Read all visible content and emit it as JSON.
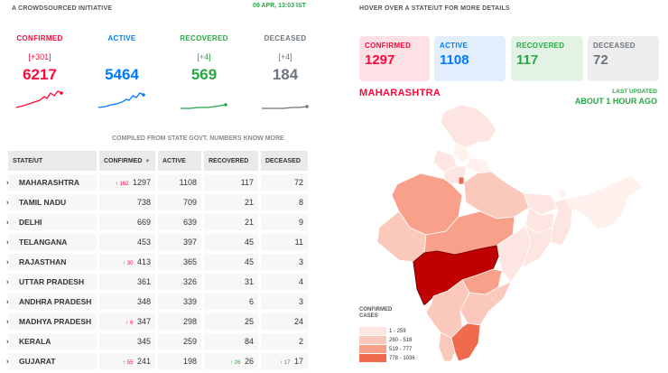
{
  "header": {
    "tagline": "A CROWDSOURCED INITIATIVE",
    "datetime": "09 APR, 13:03 IST",
    "hover_hint": "HOVER OVER A STATE/UT FOR MORE DETAILS"
  },
  "summary": {
    "confirmed": {
      "label": "CONFIRMED",
      "delta": "[+301]",
      "value": "6217",
      "color": "#ff073a"
    },
    "active": {
      "label": "ACTIVE",
      "delta": "",
      "value": "5464",
      "color": "#007bff"
    },
    "recovered": {
      "label": "RECOVERED",
      "delta": "[+4]",
      "value": "569",
      "color": "#28a745"
    },
    "deceased": {
      "label": "DECEASED",
      "delta": "[+4]",
      "value": "184",
      "color": "#6c757d"
    }
  },
  "compiled": {
    "text": "COMPILED FROM STATE GOVT. NUMBERS",
    "link": "KNOW MORE"
  },
  "table": {
    "headers": {
      "state": "STATE/UT",
      "confirmed": "CONFIRMED",
      "active": "ACTIVE",
      "recovered": "RECOVERED",
      "deceased": "DECEASED"
    },
    "rows": [
      {
        "state": "MAHARASHTRA",
        "confirmed_delta": "162",
        "confirmed": "1297",
        "active": "1108",
        "recovered": "117",
        "recovered_delta": "",
        "deceased": "72",
        "deceased_delta": ""
      },
      {
        "state": "TAMIL NADU",
        "confirmed_delta": "",
        "confirmed": "738",
        "active": "709",
        "recovered": "21",
        "recovered_delta": "",
        "deceased": "8",
        "deceased_delta": ""
      },
      {
        "state": "DELHI",
        "confirmed_delta": "",
        "confirmed": "669",
        "active": "639",
        "recovered": "21",
        "recovered_delta": "",
        "deceased": "9",
        "deceased_delta": ""
      },
      {
        "state": "TELANGANA",
        "confirmed_delta": "",
        "confirmed": "453",
        "active": "397",
        "recovered": "45",
        "recovered_delta": "",
        "deceased": "11",
        "deceased_delta": ""
      },
      {
        "state": "RAJASTHAN",
        "confirmed_delta": "30",
        "confirmed": "413",
        "active": "365",
        "recovered": "45",
        "recovered_delta": "",
        "deceased": "3",
        "deceased_delta": ""
      },
      {
        "state": "UTTAR PRADESH",
        "confirmed_delta": "",
        "confirmed": "361",
        "active": "326",
        "recovered": "31",
        "recovered_delta": "",
        "deceased": "4",
        "deceased_delta": ""
      },
      {
        "state": "ANDHRA PRADESH",
        "confirmed_delta": "",
        "confirmed": "348",
        "active": "339",
        "recovered": "6",
        "recovered_delta": "",
        "deceased": "3",
        "deceased_delta": ""
      },
      {
        "state": "MADHYA PRADESH",
        "confirmed_delta": "6",
        "confirmed": "347",
        "active": "298",
        "recovered": "25",
        "recovered_delta": "",
        "deceased": "24",
        "deceased_delta": ""
      },
      {
        "state": "KERALA",
        "confirmed_delta": "",
        "confirmed": "345",
        "active": "259",
        "recovered": "84",
        "recovered_delta": "",
        "deceased": "2",
        "deceased_delta": ""
      },
      {
        "state": "GUJARAT",
        "confirmed_delta": "55",
        "confirmed": "241",
        "active": "198",
        "recovered": "26",
        "recovered_delta": "26",
        "deceased": "17",
        "deceased_delta": "17"
      }
    ]
  },
  "state_panel": {
    "confirmed": {
      "label": "CONFIRMED",
      "value": "1297"
    },
    "active": {
      "label": "ACTIVE",
      "value": "1108"
    },
    "recovered": {
      "label": "RECOVERED",
      "value": "117"
    },
    "deceased": {
      "label": "DECEASED",
      "value": "72"
    },
    "state_name": "MAHARASHTRA",
    "last_updated_label": "LAST UPDATED",
    "last_updated_value": "ABOUT 1 HOUR AGO"
  },
  "legend": {
    "title": "CONFIRMED CASES",
    "ranges": [
      {
        "label": "1 - 259",
        "color": "#fde6e2"
      },
      {
        "label": "260 - 518",
        "color": "#fbc8bc"
      },
      {
        "label": "519 - 777",
        "color": "#f8a08a"
      },
      {
        "label": "778 - 1036",
        "color": "#f06a4e"
      }
    ]
  }
}
